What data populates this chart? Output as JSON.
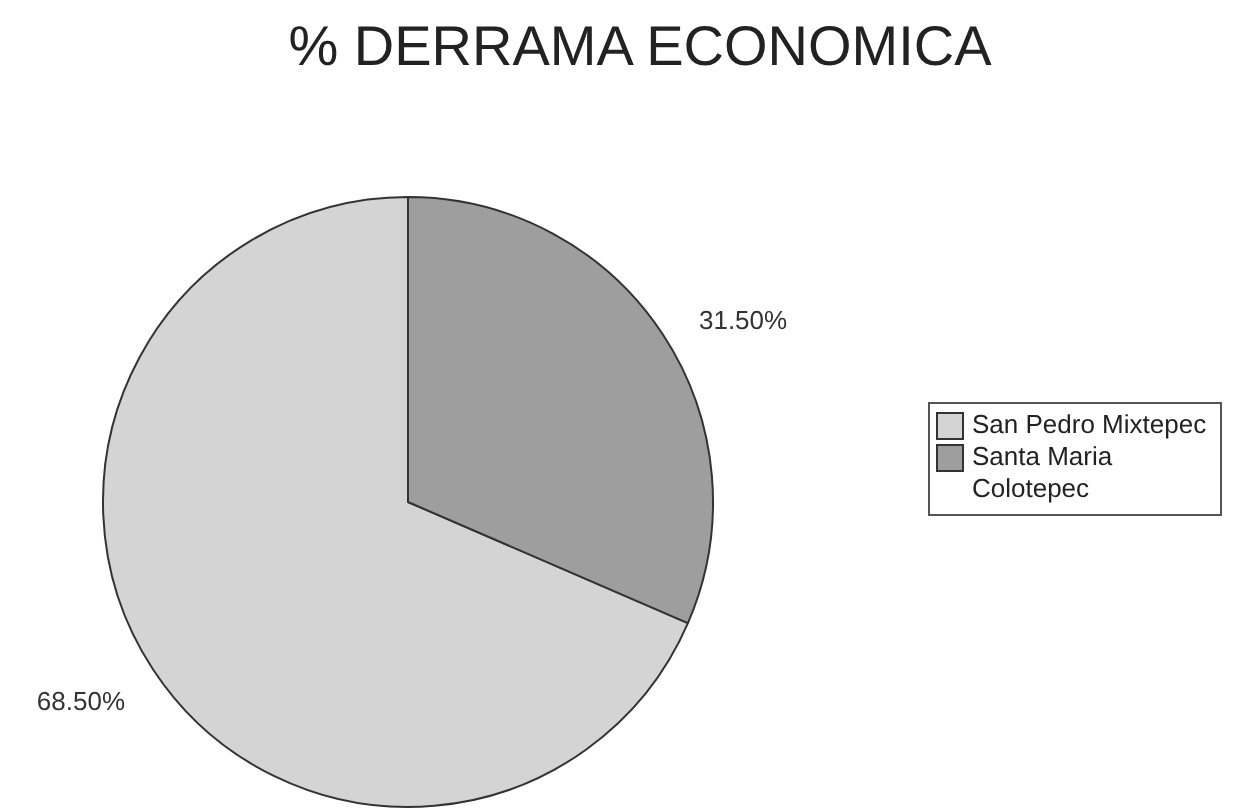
{
  "chart_data": {
    "type": "pie",
    "title": "% DERRAMA ECONOMICA",
    "categories": [
      "San Pedro Mixtepec",
      "Santa Maria Colotepec"
    ],
    "values": [
      68.5,
      31.5
    ],
    "colors": [
      "#d4d4d4",
      "#9e9e9e"
    ],
    "value_labels": [
      "68.50%",
      "31.50%"
    ],
    "legend": "right"
  }
}
